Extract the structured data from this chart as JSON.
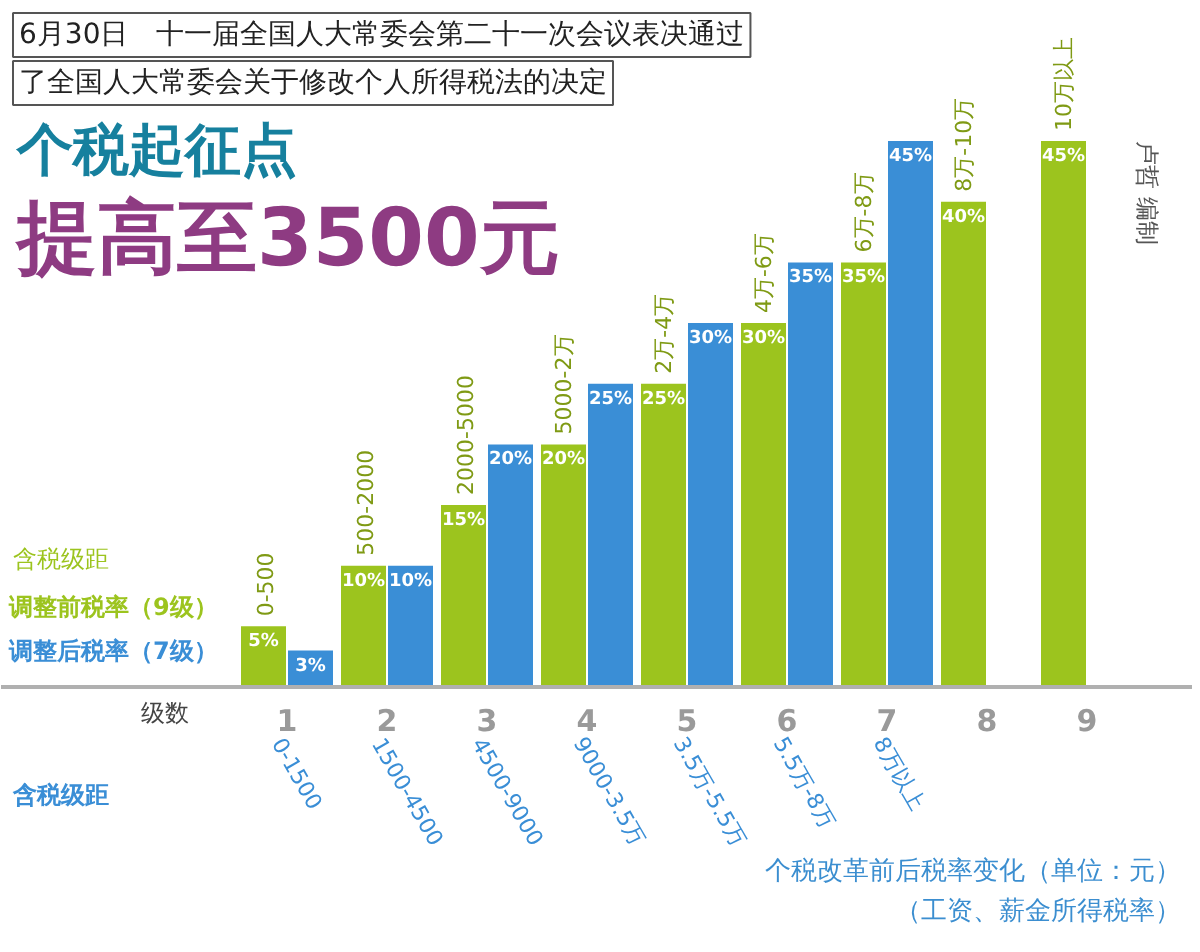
{
  "chart_data": {
    "type": "bar",
    "title": "个税起征点",
    "subtitle": "提高至3500元",
    "xlabel": "级数",
    "categories": [
      "1",
      "2",
      "3",
      "4",
      "5",
      "6",
      "7",
      "8",
      "9"
    ],
    "series": [
      {
        "name": "调整前税率（9级）",
        "color": "#9cc41e",
        "values": [
          5,
          10,
          15,
          20,
          25,
          30,
          35,
          40,
          45
        ],
        "value_labels": [
          "5%",
          "10%",
          "15%",
          "20%",
          "25%",
          "30%",
          "35%",
          "40%",
          "45%"
        ]
      },
      {
        "name": "调整后税率（7级）",
        "color": "#3a8ed6",
        "values": [
          3,
          10,
          20,
          25,
          30,
          35,
          45,
          null,
          null
        ],
        "value_labels": [
          "3%",
          "10%",
          "20%",
          "25%",
          "30%",
          "35%",
          "45%",
          null,
          null
        ]
      }
    ],
    "tick_labels": "x",
    "annotations": [
      "6月30日　十一届全国人大常委会第二十一次会议表决通过",
      "了全国人大常委会关于修改个人所得税法的决定",
      "含税级距",
      "含税级距",
      "个税改革前后税率变化（单位：元）",
      "（工资、薪金所得税率）",
      "卢哲 编制",
      {
        "text": "0-500",
        "x": "1",
        "y": 5
      },
      {
        "text": "500-2000",
        "x": "2",
        "y": 10
      },
      {
        "text": "2000-5000",
        "x": "3",
        "y": 15
      },
      {
        "text": "5000-2万",
        "x": "4",
        "y": 20
      },
      {
        "text": "2万-4万",
        "x": "5",
        "y": 25
      },
      {
        "text": "4万-6万",
        "x": "6",
        "y": 30
      },
      {
        "text": "6万-8万",
        "x": "7",
        "y": 35
      },
      {
        "text": "8万-10万",
        "x": "8",
        "y": 40
      },
      {
        "text": "10万以上",
        "x": "9",
        "y": 45
      },
      {
        "text": "0-1500",
        "x": "1",
        "y": 0
      },
      {
        "text": "1500-4500",
        "x": "2",
        "y": 0
      },
      {
        "text": "4500-9000",
        "x": "3",
        "y": 0
      },
      {
        "text": "9000-3.5万",
        "x": "4",
        "y": 0
      },
      {
        "text": "3.5万-5.5万",
        "x": "5",
        "y": 0
      },
      {
        "text": "5.5万-8万",
        "x": "6",
        "y": 0
      },
      {
        "text": "8万以上",
        "x": "7",
        "y": 0
      }
    ]
  }
}
